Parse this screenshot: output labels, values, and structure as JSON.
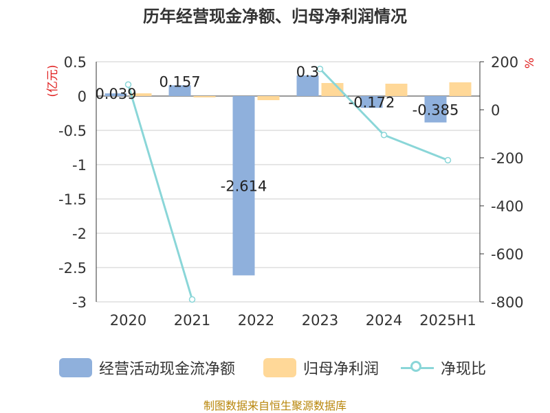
{
  "title": "历年经营现金净额、归母净利润情况",
  "source": "制图数据来自恒生聚源数据库",
  "chart_data": {
    "type": "bar",
    "categories": [
      "2020",
      "2021",
      "2022",
      "2023",
      "2024",
      "2025H1"
    ],
    "y_left": {
      "label": "(亿元)",
      "ylim": [
        -3,
        0.5
      ],
      "ticks": [
        "0.5",
        "0",
        "-0.5",
        "-1",
        "-1.5",
        "-2",
        "-2.5",
        "-3"
      ]
    },
    "y_right": {
      "label": "%",
      "ylim": [
        -800,
        200
      ],
      "ticks": [
        "200",
        "0",
        "-200",
        "-400",
        "-600",
        "-800"
      ]
    },
    "series": [
      {
        "name": "经营活动现金流净额",
        "kind": "bar",
        "axis": "left",
        "color": "#8fb0dc",
        "values": [
          0.039,
          0.157,
          -2.614,
          0.3,
          -0.172,
          -0.385
        ],
        "labels": [
          "0.039",
          "0.157",
          "-2.614",
          "0.3",
          "-0.172",
          "-0.385"
        ]
      },
      {
        "name": "归母净利润",
        "kind": "bar",
        "axis": "left",
        "color": "#ffd898",
        "values": [
          0.04,
          -0.02,
          -0.06,
          0.19,
          0.18,
          0.2
        ]
      },
      {
        "name": "净现比",
        "kind": "line",
        "axis": "right",
        "color": "#8ad6d8",
        "values": [
          105,
          -790,
          null,
          170,
          -105,
          -210
        ]
      }
    ],
    "grid": true,
    "legend": "bottom"
  }
}
